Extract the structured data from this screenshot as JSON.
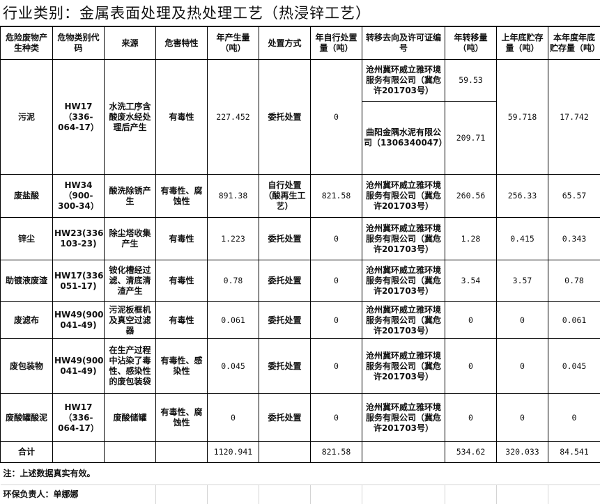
{
  "title": "行业类别：金属表面处理及热处理工艺（热浸锌工艺）",
  "headers": [
    "危险废物产生种类",
    "危物类别代码",
    "来源",
    "危害特性",
    "年产生量（吨）",
    "处置方式",
    "年自行处置量（吨）",
    "转移去向及许可证编号",
    "年转移量（吨）",
    "上年底贮存量（吨）",
    "本年度年底贮存量（吨）"
  ],
  "rows": [
    {
      "type": "污泥",
      "code": "HW17（336-064-17）",
      "source": "水洗工序含酸废水经处理后产生",
      "hazard": "有毒性",
      "annual": "227.452",
      "method": "委托处置",
      "self": "0",
      "transfers": [
        {
          "dest": "沧州冀环威立雅环境服务有限公司（冀危许201703号）",
          "amount": "59.53"
        },
        {
          "dest": "曲阳金隅水泥有限公司（1306340047）",
          "amount": "209.71"
        }
      ],
      "prev": "59.718",
      "end": "17.742"
    },
    {
      "type": "废盐酸",
      "code": "HW34（900-300-34）",
      "source": "酸洗除锈产生",
      "hazard": "有毒性、腐蚀性",
      "annual": "891.38",
      "method": "自行处置（酸再生工艺）",
      "self": "821.58",
      "dest": "沧州冀环威立雅环境服务有限公司（冀危许201703号）",
      "amount": "260.56",
      "prev": "256.33",
      "end": "65.57"
    },
    {
      "type": "锌尘",
      "code": "HW23(336-103-23)",
      "source": "除尘塔收集产生",
      "hazard": "有毒性",
      "annual": "1.223",
      "method": "委托处置",
      "self": "0",
      "dest": "沧州冀环威立雅环境服务有限公司（冀危许201703号）",
      "amount": "1.28",
      "prev": "0.415",
      "end": "0.343"
    },
    {
      "type": "助镀液废渣",
      "code": "HW17(336-051-17)",
      "source": "铵化槽经过滤、清底清渣产生",
      "hazard": "有毒性",
      "annual": "0.78",
      "method": "委托处置",
      "self": "0",
      "dest": "沧州冀环威立雅环境服务有限公司（冀危许201703号）",
      "amount": "3.54",
      "prev": "3.57",
      "end": "0.78"
    },
    {
      "type": "废滤布",
      "code": "HW49(900-041-49)",
      "source": "污泥板框机及真空过滤器",
      "hazard": "有毒性",
      "annual": "0.061",
      "method": "委托处置",
      "self": "0",
      "dest": "沧州冀环威立雅环境服务有限公司（冀危许201703号）",
      "amount": "0",
      "prev": "0",
      "end": "0.061"
    },
    {
      "type": "废包装物",
      "code": "HW49(900-041-49)",
      "source": "在生产过程中沾染了毒性、感染性的废包装袋",
      "hazard": "有毒性、感染性",
      "annual": "0.045",
      "method": "委托处置",
      "self": "0",
      "dest": "沧州冀环威立雅环境服务有限公司（冀危许201703号）",
      "amount": "0",
      "prev": "0",
      "end": "0.045"
    },
    {
      "type": "废酸罐酸泥",
      "code": "HW17（336-064-17）",
      "source": "废酸储罐",
      "hazard": "有毒性、腐蚀性",
      "annual": "0",
      "method": "委托处置",
      "self": "0",
      "dest": "沧州冀环威立雅环境服务有限公司（冀危许201703号）",
      "amount": "0",
      "prev": "0",
      "end": "0"
    }
  ],
  "total": {
    "label": "合计",
    "annual": "1120.941",
    "self": "821.58",
    "amount": "534.62",
    "prev": "320.033",
    "end": "84.541"
  },
  "note": "注：上述数据真实有效。",
  "signer": "环保负责人：单娜娜"
}
